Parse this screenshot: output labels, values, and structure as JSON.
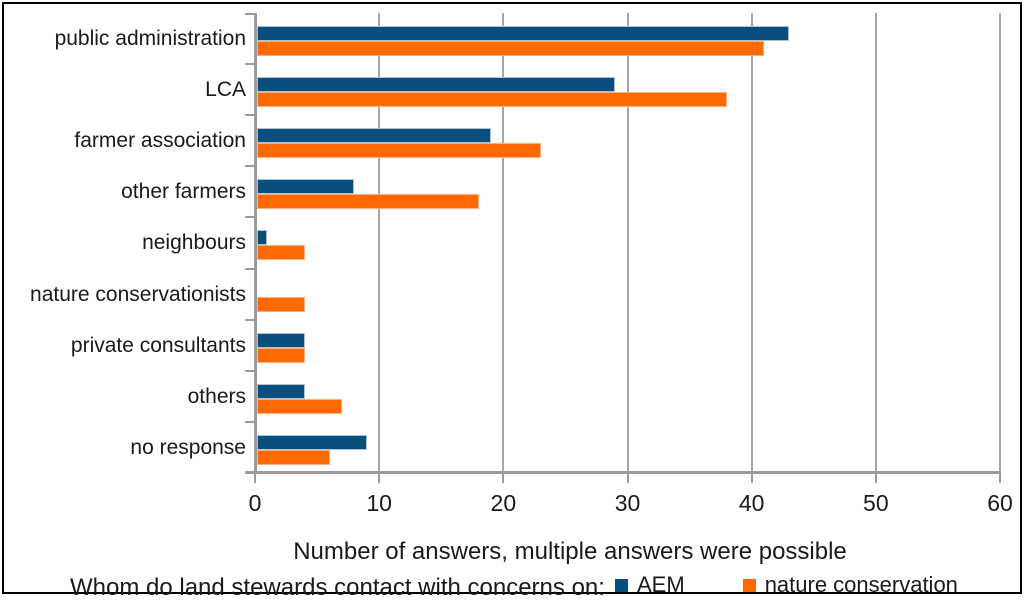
{
  "caption": "Whom do land stewards contact with concerns on:",
  "chart_data": {
    "type": "bar",
    "orientation": "horizontal",
    "title": "",
    "xlabel": "Number of answers, multiple answers were possible",
    "ylabel": "",
    "categories": [
      "public administration",
      "LCA",
      "farmer association",
      "other farmers",
      "neighbours",
      "nature conservationists",
      "private consultants",
      "others",
      "no response"
    ],
    "series": [
      {
        "name": "AEM",
        "color": "#084e7e",
        "border_color": "#aec2d1",
        "values": [
          43,
          29,
          19,
          8,
          1,
          0,
          4,
          4,
          9
        ]
      },
      {
        "name": "nature conservation",
        "color": "#ff6a00",
        "border_color": "#ffb07a",
        "values": [
          41,
          38,
          23,
          18,
          4,
          4,
          4,
          7,
          6
        ]
      }
    ],
    "x_ticks": [
      0,
      10,
      20,
      30,
      40,
      50,
      60
    ],
    "xlim": [
      0,
      60
    ],
    "grid": "vertical-gridlines",
    "gridline_color": "#a6a6a6",
    "axis_color": "#9b9b9b",
    "legend_position": "bottom-right"
  }
}
